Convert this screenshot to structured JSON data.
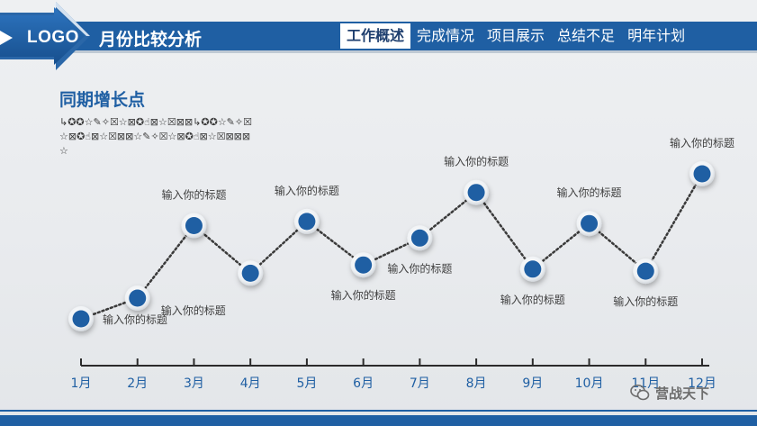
{
  "header": {
    "logo": "LOGO",
    "title": "月份比较分析",
    "nav": [
      {
        "label": "工作概述",
        "active": true
      },
      {
        "label": "完成情况",
        "active": false
      },
      {
        "label": "项目展示",
        "active": false
      },
      {
        "label": "总结不足",
        "active": false
      },
      {
        "label": "明年计划",
        "active": false
      }
    ]
  },
  "section_title": "同期增长点",
  "note": "↳✪✪☆✎✧☒☆⊠✪☝⊠☆☒⊠⊠↳✪✪☆✎✧☒☆⊠✪☝⊠☆☒⊠⊠☆✎✧☒☆⊠✪☝⊠☆☒⊠⊠⊠☆",
  "colors": {
    "accent": "#1f5fa3",
    "marker_fill": "#1f5fa3",
    "marker_ring": "#ffffff",
    "line": "#3a3a3a"
  },
  "chart_data": {
    "type": "line",
    "categories": [
      "1月",
      "2月",
      "3月",
      "4月",
      "5月",
      "6月",
      "7月",
      "8月",
      "9月",
      "10月",
      "11月",
      "12月"
    ],
    "values": [
      2,
      3,
      6.5,
      4.2,
      6.7,
      4.6,
      5.9,
      8.1,
      4.4,
      6.6,
      4.3,
      9.0
    ],
    "ylim": [
      0,
      10
    ],
    "point_labels": [
      {
        "text": "输入你的标题",
        "position": "right"
      },
      {
        "text": "输入你的标题",
        "position": "below-right"
      },
      {
        "text": "输入你的标题",
        "position": "above"
      },
      {
        "text": "",
        "position": "none"
      },
      {
        "text": "输入你的标题",
        "position": "above"
      },
      {
        "text": "输入你的标题",
        "position": "below"
      },
      {
        "text": "输入你的标题",
        "position": "below"
      },
      {
        "text": "输入你的标题",
        "position": "above"
      },
      {
        "text": "输入你的标题",
        "position": "below"
      },
      {
        "text": "输入你的标题",
        "position": "above"
      },
      {
        "text": "输入你的标题",
        "position": "below"
      },
      {
        "text": "输入你的标题",
        "position": "above"
      }
    ],
    "grid": false,
    "legend": "none"
  },
  "watermark": "营战天下"
}
